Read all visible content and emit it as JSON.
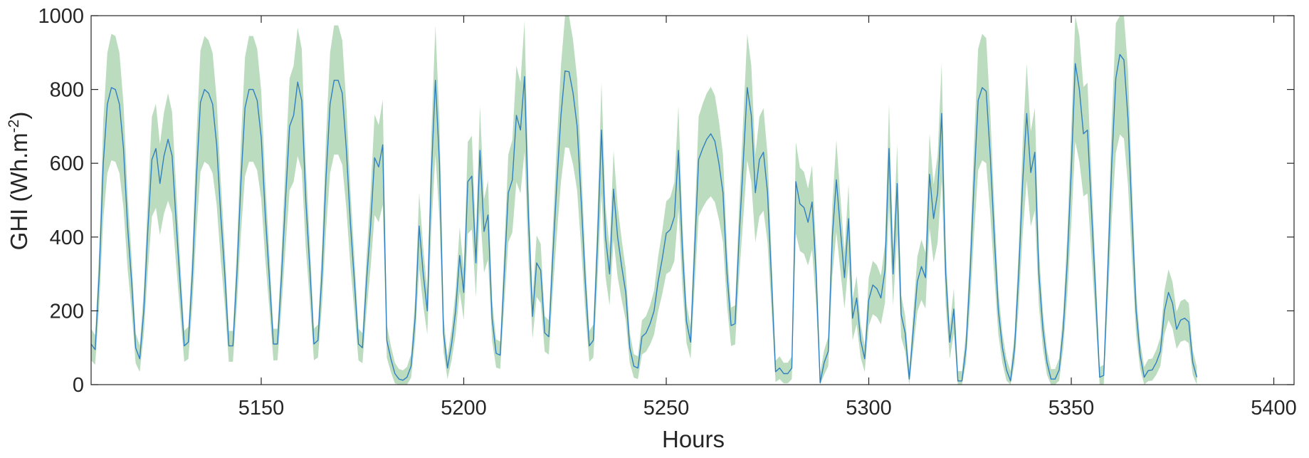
{
  "chart_data": {
    "type": "area",
    "title": "",
    "xlabel": "Hours",
    "ylabel_main": "GHI (Wh.m",
    "ylabel_sup": "-2",
    "ylabel_end": ")",
    "xlim": [
      5108,
      5405
    ],
    "ylim": [
      0,
      1000
    ],
    "xticks": [
      5150,
      5200,
      5250,
      5300,
      5350,
      5400
    ],
    "yticks": [
      0,
      200,
      400,
      600,
      800,
      1000
    ],
    "grid": false,
    "legend": "none",
    "colors": {
      "band": "#bcdcbf",
      "line": "#2f7fc1",
      "axis": "#262626"
    },
    "series": [
      {
        "kind": "line",
        "points": [
          [
            5108,
            110
          ],
          [
            5109,
            95
          ],
          [
            5110,
            300
          ],
          [
            5111,
            600
          ],
          [
            5112,
            760
          ],
          [
            5113,
            805
          ],
          [
            5114,
            800
          ],
          [
            5115,
            760
          ],
          [
            5116,
            640
          ],
          [
            5117,
            430
          ],
          [
            5118,
            280
          ],
          [
            5119,
            100
          ],
          [
            5120,
            70
          ],
          [
            5121,
            200
          ],
          [
            5122,
            420
          ],
          [
            5123,
            610
          ],
          [
            5124,
            640
          ],
          [
            5125,
            545
          ],
          [
            5126,
            620
          ],
          [
            5127,
            665
          ],
          [
            5128,
            620
          ],
          [
            5129,
            440
          ],
          [
            5130,
            270
          ],
          [
            5131,
            105
          ],
          [
            5132,
            115
          ],
          [
            5133,
            300
          ],
          [
            5134,
            560
          ],
          [
            5135,
            765
          ],
          [
            5136,
            800
          ],
          [
            5137,
            790
          ],
          [
            5138,
            760
          ],
          [
            5139,
            650
          ],
          [
            5140,
            460
          ],
          [
            5141,
            300
          ],
          [
            5142,
            105
          ],
          [
            5143,
            105
          ],
          [
            5144,
            300
          ],
          [
            5145,
            550
          ],
          [
            5146,
            750
          ],
          [
            5147,
            800
          ],
          [
            5148,
            800
          ],
          [
            5149,
            770
          ],
          [
            5150,
            670
          ],
          [
            5151,
            460
          ],
          [
            5152,
            290
          ],
          [
            5153,
            110
          ],
          [
            5154,
            110
          ],
          [
            5155,
            290
          ],
          [
            5156,
            500
          ],
          [
            5157,
            700
          ],
          [
            5158,
            730
          ],
          [
            5159,
            820
          ],
          [
            5160,
            770
          ],
          [
            5161,
            500
          ],
          [
            5162,
            315
          ],
          [
            5163,
            110
          ],
          [
            5164,
            120
          ],
          [
            5165,
            300
          ],
          [
            5166,
            560
          ],
          [
            5167,
            760
          ],
          [
            5168,
            825
          ],
          [
            5169,
            825
          ],
          [
            5170,
            790
          ],
          [
            5171,
            640
          ],
          [
            5172,
            440
          ],
          [
            5173,
            280
          ],
          [
            5174,
            110
          ],
          [
            5175,
            100
          ],
          [
            5176,
            280
          ],
          [
            5177,
            430
          ],
          [
            5178,
            615
          ],
          [
            5179,
            590
          ],
          [
            5180,
            650
          ],
          [
            5181,
            120
          ],
          [
            5182,
            70
          ],
          [
            5183,
            30
          ],
          [
            5184,
            15
          ],
          [
            5185,
            12
          ],
          [
            5186,
            20
          ],
          [
            5187,
            50
          ],
          [
            5188,
            180
          ],
          [
            5189,
            430
          ],
          [
            5190,
            300
          ],
          [
            5191,
            200
          ],
          [
            5192,
            570
          ],
          [
            5193,
            825
          ],
          [
            5194,
            600
          ],
          [
            5195,
            140
          ],
          [
            5196,
            45
          ],
          [
            5197,
            110
          ],
          [
            5198,
            200
          ],
          [
            5199,
            350
          ],
          [
            5200,
            250
          ],
          [
            5201,
            550
          ],
          [
            5202,
            565
          ],
          [
            5203,
            330
          ],
          [
            5204,
            635
          ],
          [
            5205,
            415
          ],
          [
            5206,
            460
          ],
          [
            5207,
            180
          ],
          [
            5208,
            85
          ],
          [
            5209,
            80
          ],
          [
            5210,
            300
          ],
          [
            5211,
            520
          ],
          [
            5212,
            555
          ],
          [
            5213,
            730
          ],
          [
            5214,
            690
          ],
          [
            5215,
            835
          ],
          [
            5216,
            450
          ],
          [
            5217,
            185
          ],
          [
            5218,
            330
          ],
          [
            5219,
            310
          ],
          [
            5220,
            140
          ],
          [
            5221,
            130
          ],
          [
            5222,
            350
          ],
          [
            5223,
            550
          ],
          [
            5224,
            730
          ],
          [
            5225,
            850
          ],
          [
            5226,
            848
          ],
          [
            5227,
            790
          ],
          [
            5228,
            700
          ],
          [
            5229,
            500
          ],
          [
            5230,
            280
          ],
          [
            5231,
            105
          ],
          [
            5232,
            120
          ],
          [
            5233,
            380
          ],
          [
            5234,
            690
          ],
          [
            5235,
            400
          ],
          [
            5236,
            300
          ],
          [
            5237,
            530
          ],
          [
            5238,
            400
          ],
          [
            5239,
            320
          ],
          [
            5240,
            250
          ],
          [
            5241,
            100
          ],
          [
            5242,
            50
          ],
          [
            5243,
            45
          ],
          [
            5244,
            130
          ],
          [
            5245,
            140
          ],
          [
            5246,
            165
          ],
          [
            5247,
            200
          ],
          [
            5248,
            280
          ],
          [
            5249,
            340
          ],
          [
            5250,
            410
          ],
          [
            5251,
            420
          ],
          [
            5252,
            455
          ],
          [
            5253,
            635
          ],
          [
            5254,
            360
          ],
          [
            5255,
            170
          ],
          [
            5256,
            115
          ],
          [
            5257,
            360
          ],
          [
            5258,
            610
          ],
          [
            5259,
            640
          ],
          [
            5260,
            665
          ],
          [
            5261,
            680
          ],
          [
            5262,
            660
          ],
          [
            5263,
            600
          ],
          [
            5264,
            520
          ],
          [
            5265,
            300
          ],
          [
            5266,
            160
          ],
          [
            5267,
            165
          ],
          [
            5268,
            400
          ],
          [
            5269,
            600
          ],
          [
            5270,
            805
          ],
          [
            5271,
            730
          ],
          [
            5272,
            520
          ],
          [
            5273,
            610
          ],
          [
            5274,
            630
          ],
          [
            5275,
            520
          ],
          [
            5276,
            280
          ],
          [
            5277,
            35
          ],
          [
            5278,
            45
          ],
          [
            5279,
            30
          ],
          [
            5280,
            30
          ],
          [
            5281,
            45
          ],
          [
            5282,
            550
          ],
          [
            5283,
            490
          ],
          [
            5284,
            480
          ],
          [
            5285,
            440
          ],
          [
            5286,
            495
          ],
          [
            5287,
            300
          ],
          [
            5288,
            5
          ],
          [
            5289,
            60
          ],
          [
            5290,
            90
          ],
          [
            5291,
            400
          ],
          [
            5292,
            555
          ],
          [
            5293,
            420
          ],
          [
            5294,
            290
          ],
          [
            5295,
            450
          ],
          [
            5296,
            180
          ],
          [
            5297,
            235
          ],
          [
            5298,
            120
          ],
          [
            5299,
            70
          ],
          [
            5300,
            230
          ],
          [
            5301,
            270
          ],
          [
            5302,
            260
          ],
          [
            5303,
            235
          ],
          [
            5304,
            310
          ],
          [
            5305,
            640
          ],
          [
            5306,
            300
          ],
          [
            5307,
            545
          ],
          [
            5308,
            190
          ],
          [
            5309,
            140
          ],
          [
            5310,
            15
          ],
          [
            5311,
            150
          ],
          [
            5312,
            280
          ],
          [
            5313,
            320
          ],
          [
            5314,
            290
          ],
          [
            5315,
            570
          ],
          [
            5316,
            450
          ],
          [
            5317,
            520
          ],
          [
            5318,
            735
          ],
          [
            5319,
            300
          ],
          [
            5320,
            115
          ],
          [
            5321,
            205
          ],
          [
            5322,
            10
          ],
          [
            5323,
            10
          ],
          [
            5324,
            100
          ],
          [
            5325,
            300
          ],
          [
            5326,
            550
          ],
          [
            5327,
            770
          ],
          [
            5328,
            805
          ],
          [
            5329,
            795
          ],
          [
            5330,
            620
          ],
          [
            5331,
            400
          ],
          [
            5332,
            200
          ],
          [
            5333,
            100
          ],
          [
            5334,
            40
          ],
          [
            5335,
            10
          ],
          [
            5336,
            100
          ],
          [
            5337,
            300
          ],
          [
            5338,
            550
          ],
          [
            5339,
            735
          ],
          [
            5340,
            575
          ],
          [
            5341,
            630
          ],
          [
            5342,
            300
          ],
          [
            5343,
            150
          ],
          [
            5344,
            60
          ],
          [
            5345,
            15
          ],
          [
            5346,
            15
          ],
          [
            5347,
            40
          ],
          [
            5348,
            150
          ],
          [
            5349,
            330
          ],
          [
            5350,
            580
          ],
          [
            5351,
            870
          ],
          [
            5352,
            800
          ],
          [
            5353,
            680
          ],
          [
            5354,
            690
          ],
          [
            5355,
            470
          ],
          [
            5356,
            250
          ],
          [
            5357,
            20
          ],
          [
            5358,
            25
          ],
          [
            5359,
            300
          ],
          [
            5360,
            600
          ],
          [
            5361,
            830
          ],
          [
            5362,
            895
          ],
          [
            5363,
            880
          ],
          [
            5364,
            720
          ],
          [
            5365,
            450
          ],
          [
            5366,
            200
          ],
          [
            5367,
            80
          ],
          [
            5368,
            20
          ],
          [
            5369,
            38
          ],
          [
            5370,
            40
          ],
          [
            5371,
            60
          ],
          [
            5372,
            90
          ],
          [
            5373,
            200
          ],
          [
            5374,
            250
          ],
          [
            5375,
            220
          ],
          [
            5376,
            150
          ],
          [
            5377,
            175
          ],
          [
            5378,
            180
          ],
          [
            5379,
            170
          ],
          [
            5380,
            60
          ],
          [
            5381,
            20
          ]
        ],
        "x_scale_note": "hours"
      }
    ]
  }
}
